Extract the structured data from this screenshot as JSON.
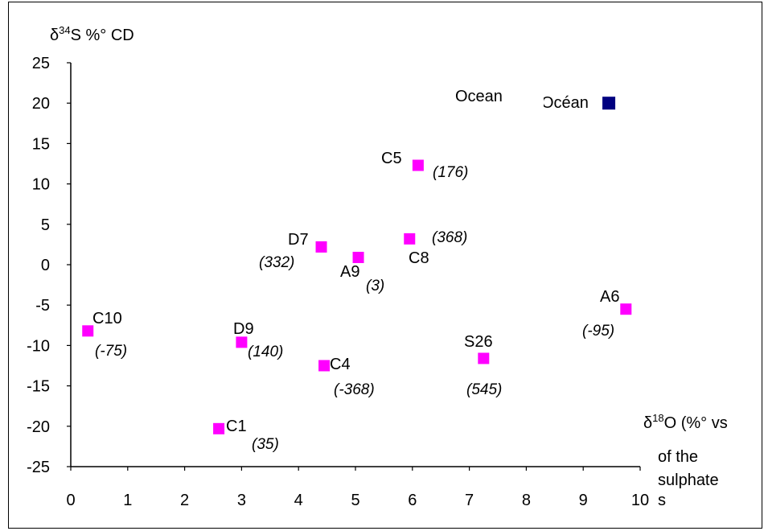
{
  "chart_data": {
    "type": "scatter",
    "ylabel": "δ34S %° CD",
    "ylabel_parts": {
      "delta": "δ",
      "sup": "34",
      "rest": "S %°  CD"
    },
    "xlabel": "δ18O (%° vs",
    "xlabel_parts": {
      "delta": "δ",
      "sup": "18",
      "rest": "O (%°  vs"
    },
    "xlabel_cont": [
      "of the",
      "sulphate",
      "s"
    ],
    "xlim": [
      0,
      10
    ],
    "ylim": [
      -25,
      25
    ],
    "x_ticks": [
      "0",
      "1",
      "2",
      "3",
      "4",
      "5",
      "6",
      "7",
      "8",
      "9",
      "10"
    ],
    "y_ticks": [
      "25",
      "20",
      "15",
      "10",
      "5",
      "0",
      "-5",
      "-10",
      "-15",
      "-20",
      "-25"
    ],
    "grid": false,
    "series": [
      {
        "color": "#ff00ff",
        "points": [
          {
            "label": "C10",
            "value_label": "(-75)",
            "x": 0.3,
            "y": -8.2
          },
          {
            "label": "C1",
            "value_label": "(35)",
            "x": 2.6,
            "y": -20.3
          },
          {
            "label": "D9",
            "value_label": "(140)",
            "x": 3.0,
            "y": -9.6
          },
          {
            "label": "D7",
            "value_label": "(332)",
            "x": 4.4,
            "y": 2.2
          },
          {
            "label": "C4",
            "value_label": "(-368)",
            "x": 4.45,
            "y": -12.5
          },
          {
            "label": "A9",
            "value_label": "(3)",
            "x": 5.05,
            "y": 0.9
          },
          {
            "label": "C8",
            "value_label": "(368)",
            "x": 5.95,
            "y": 3.2
          },
          {
            "label": "C5",
            "value_label": "(176)",
            "x": 6.1,
            "y": 12.3
          },
          {
            "label": "S26",
            "value_label": "(545)",
            "x": 7.25,
            "y": -11.6
          },
          {
            "label": "A6",
            "value_label": "(-95)",
            "x": 9.75,
            "y": -5.5
          }
        ]
      },
      {
        "color": "#000080",
        "points": [
          {
            "label": "Océan",
            "x": 9.45,
            "y": 20.0
          }
        ]
      }
    ],
    "annotations": [
      {
        "text": "Ocean"
      }
    ]
  }
}
